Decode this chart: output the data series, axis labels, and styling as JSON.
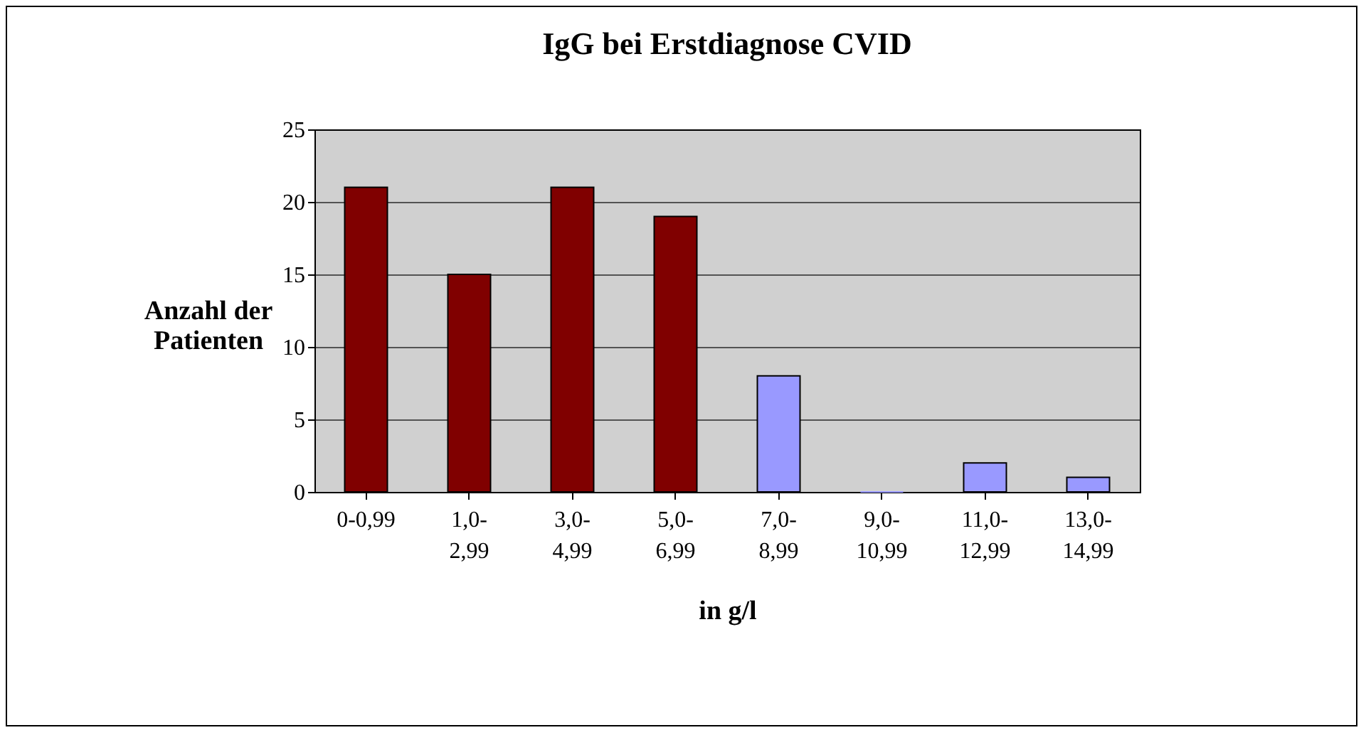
{
  "chart_data": {
    "type": "bar",
    "title": "IgG bei Erstdiagnose CVID",
    "xlabel": "in g/l",
    "ylabel": "Anzahl der Patienten",
    "categories": [
      "0-0,99",
      "1,0-2,99",
      "3,0-4,99",
      "5,0-6,99",
      "7,0-8,99",
      "9,0-10,99",
      "11,0-12,99",
      "13,0-14,99"
    ],
    "values": [
      21,
      15,
      21,
      19,
      8,
      0,
      2,
      1
    ],
    "colors": [
      "#800000",
      "#800000",
      "#800000",
      "#800000",
      "#9999ff",
      "#9999ff",
      "#9999ff",
      "#9999ff"
    ],
    "ylim": [
      0,
      25
    ],
    "yticks": [
      0,
      5,
      10,
      15,
      20,
      25
    ],
    "grid": "y"
  }
}
